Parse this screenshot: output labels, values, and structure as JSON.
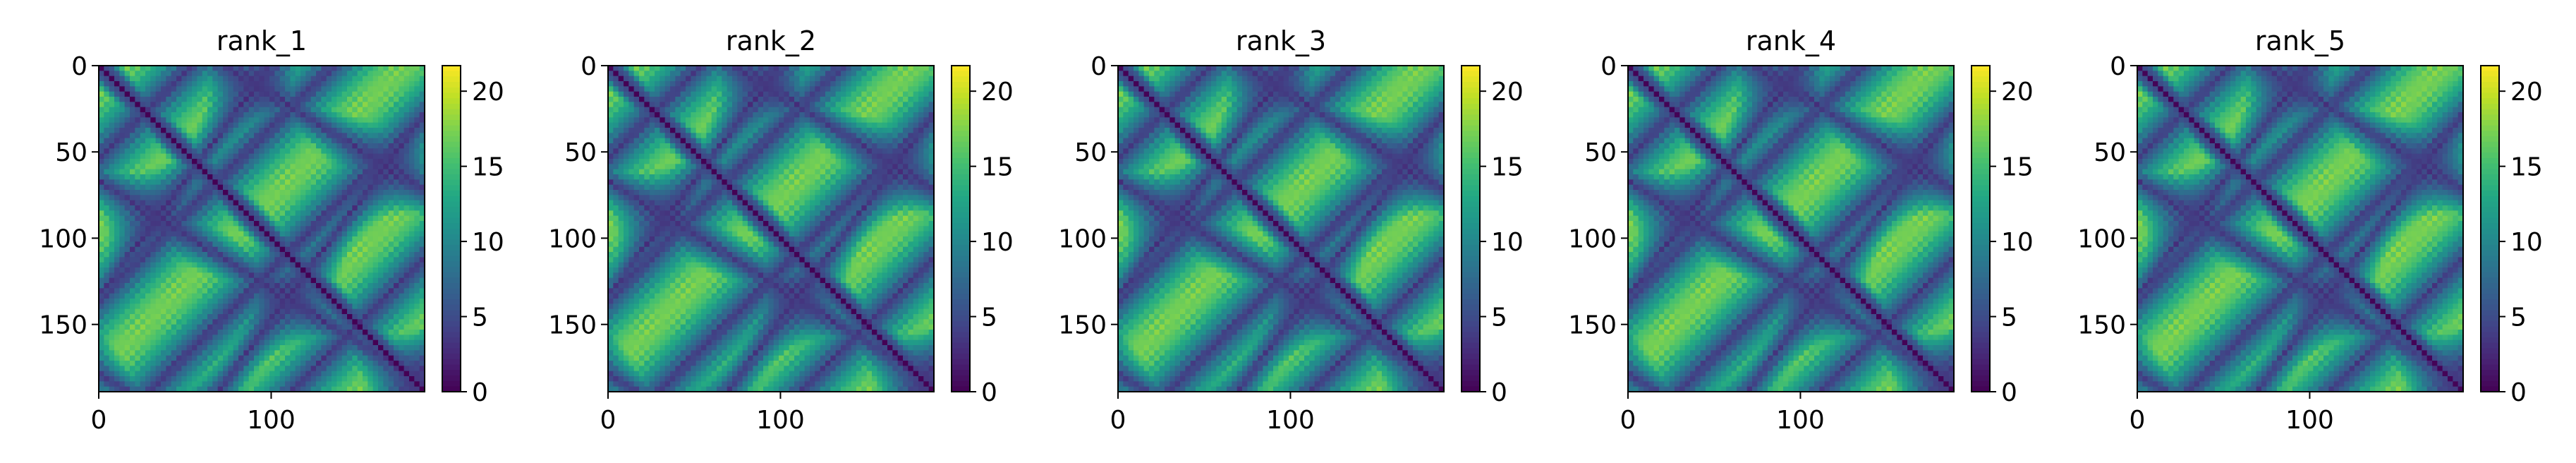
{
  "chart_data": [
    {
      "type": "heatmap",
      "title": "rank_1",
      "matrix_size": 189,
      "xlim": [
        0,
        189
      ],
      "ylim": [
        189,
        0
      ],
      "x_ticks": [
        0,
        100
      ],
      "y_ticks": [
        0,
        50,
        100,
        150
      ],
      "color_range": [
        0,
        21.7
      ],
      "colorbar_ticks": [
        0,
        5,
        10,
        15,
        20
      ],
      "colormap": "viridis",
      "grid": false
    },
    {
      "type": "heatmap",
      "title": "rank_2",
      "matrix_size": 189,
      "xlim": [
        0,
        189
      ],
      "ylim": [
        189,
        0
      ],
      "x_ticks": [
        0,
        100
      ],
      "y_ticks": [
        0,
        50,
        100,
        150
      ],
      "color_range": [
        0,
        21.7
      ],
      "colorbar_ticks": [
        0,
        5,
        10,
        15,
        20
      ],
      "colormap": "viridis",
      "grid": false
    },
    {
      "type": "heatmap",
      "title": "rank_3",
      "matrix_size": 189,
      "xlim": [
        0,
        189
      ],
      "ylim": [
        189,
        0
      ],
      "x_ticks": [
        0,
        100
      ],
      "y_ticks": [
        0,
        50,
        100,
        150
      ],
      "color_range": [
        0,
        21.7
      ],
      "colorbar_ticks": [
        0,
        5,
        10,
        15,
        20
      ],
      "colormap": "viridis",
      "grid": false
    },
    {
      "type": "heatmap",
      "title": "rank_4",
      "matrix_size": 189,
      "xlim": [
        0,
        189
      ],
      "ylim": [
        189,
        0
      ],
      "x_ticks": [
        0,
        100
      ],
      "y_ticks": [
        0,
        50,
        100,
        150
      ],
      "color_range": [
        0,
        21.7
      ],
      "colorbar_ticks": [
        0,
        5,
        10,
        15,
        20
      ],
      "colormap": "viridis",
      "grid": false
    },
    {
      "type": "heatmap",
      "title": "rank_5",
      "matrix_size": 189,
      "xlim": [
        0,
        189
      ],
      "ylim": [
        189,
        0
      ],
      "x_ticks": [
        0,
        100
      ],
      "y_ticks": [
        0,
        50,
        100,
        150
      ],
      "color_range": [
        0,
        21.7
      ],
      "colorbar_ticks": [
        0,
        5,
        10,
        15,
        20
      ],
      "colormap": "viridis",
      "grid": false
    }
  ],
  "colors": {
    "viridis_low": "#440154",
    "viridis_mid": "#21918c",
    "viridis_high": "#fde725",
    "axis": "#000000",
    "background": "#ffffff"
  }
}
